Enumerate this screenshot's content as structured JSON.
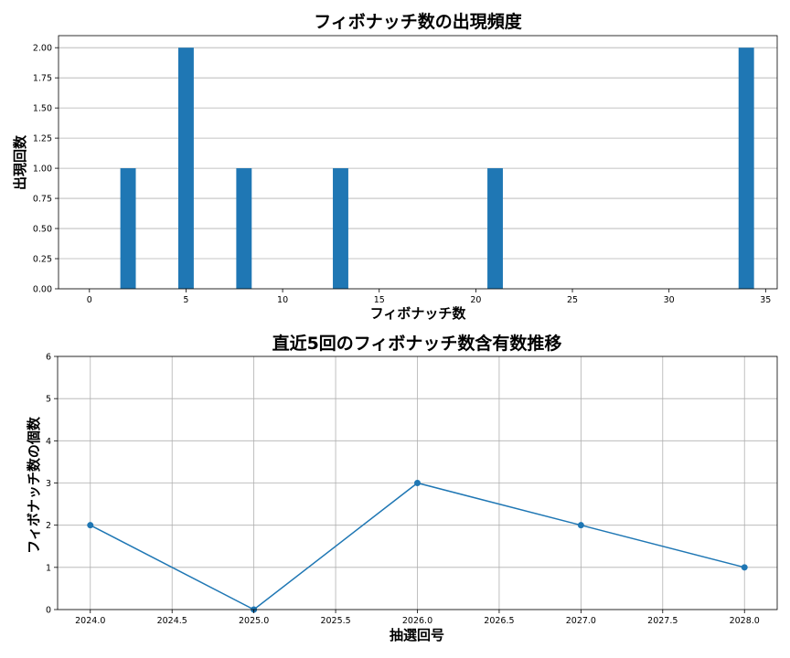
{
  "chart_data": [
    {
      "type": "bar",
      "title": "フィボナッチ数の出現頻度",
      "xlabel": "フィボナッチ数",
      "ylabel": "出現回数",
      "x": [
        2,
        5,
        8,
        13,
        21,
        34
      ],
      "values": [
        1,
        2,
        1,
        1,
        1,
        2
      ],
      "xlim": [
        -1.6,
        35.6
      ],
      "ylim": [
        0,
        2.1
      ],
      "xticks": [
        0,
        5,
        10,
        15,
        20,
        25,
        30,
        35
      ],
      "xtick_labels": [
        "0",
        "5",
        "10",
        "15",
        "20",
        "25",
        "30",
        "35"
      ],
      "yticks": [
        0,
        0.25,
        0.5,
        0.75,
        1.0,
        1.25,
        1.5,
        1.75,
        2.0
      ],
      "ytick_labels": [
        "0.00",
        "0.25",
        "0.50",
        "0.75",
        "1.00",
        "1.25",
        "1.50",
        "1.75",
        "2.00"
      ],
      "grid": "y",
      "color": "#1f77b4"
    },
    {
      "type": "line",
      "title": "直近5回のフィボナッチ数含有数推移",
      "xlabel": "抽選回号",
      "ylabel": "フィボナッチ数の個数",
      "x": [
        2024.0,
        2025.0,
        2026.0,
        2027.0,
        2028.0
      ],
      "values": [
        2,
        0,
        3,
        2,
        1
      ],
      "xlim": [
        2023.8,
        2028.2
      ],
      "ylim": [
        0,
        6
      ],
      "xticks": [
        2024.0,
        2024.5,
        2025.0,
        2025.5,
        2026.0,
        2026.5,
        2027.0,
        2027.5,
        2028.0
      ],
      "xtick_labels": [
        "2024.0",
        "2024.5",
        "2025.0",
        "2025.5",
        "2026.0",
        "2026.5",
        "2027.0",
        "2027.5",
        "2028.0"
      ],
      "yticks": [
        0,
        1,
        2,
        3,
        4,
        5,
        6
      ],
      "ytick_labels": [
        "0",
        "1",
        "2",
        "3",
        "4",
        "5",
        "6"
      ],
      "grid": "both",
      "marker": "circle",
      "color": "#1f77b4"
    }
  ]
}
